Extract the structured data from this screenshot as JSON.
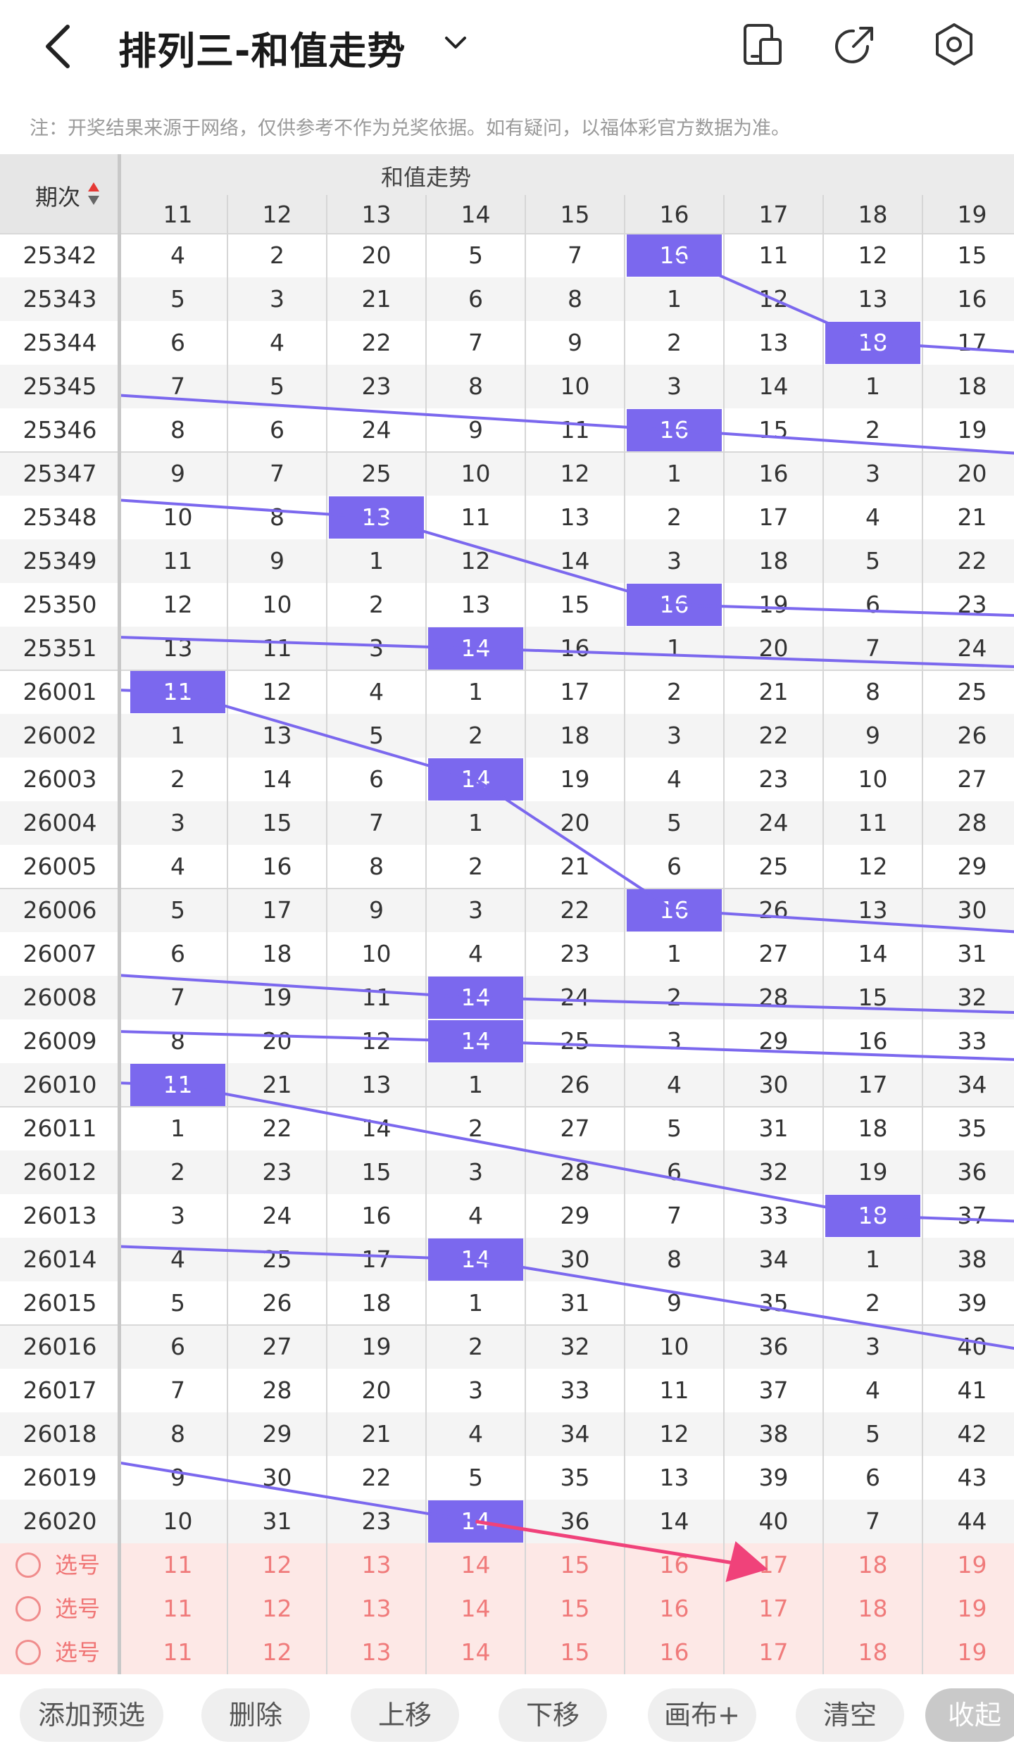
{
  "header": {
    "title": "排列三-和值走势",
    "icons": [
      "back-icon",
      "chevron-down-icon",
      "phone-layout-icon",
      "share-icon",
      "settings-icon"
    ]
  },
  "notice": "注：开奖结果来源于网络，仅供参考不作为兑奖依据。如有疑问，以福体彩官方数据为准。",
  "table": {
    "period_header": "期次",
    "group_header": "和值走势",
    "columns": [
      "11",
      "12",
      "13",
      "14",
      "15",
      "16",
      "17",
      "18",
      "19"
    ],
    "rows": [
      {
        "period": "25342",
        "values": [
          "4",
          "2",
          "20",
          "5",
          "7",
          "16",
          "11",
          "12",
          "15"
        ],
        "hit": 5
      },
      {
        "period": "25343",
        "values": [
          "5",
          "3",
          "21",
          "6",
          "8",
          "1",
          "12",
          "13",
          "16"
        ],
        "hit": -1
      },
      {
        "period": "25344",
        "values": [
          "6",
          "4",
          "22",
          "7",
          "9",
          "2",
          "13",
          "18",
          "17"
        ],
        "hit": 7
      },
      {
        "period": "25345",
        "values": [
          "7",
          "5",
          "23",
          "8",
          "10",
          "3",
          "14",
          "1",
          "18"
        ],
        "hit": -1
      },
      {
        "period": "25346",
        "values": [
          "8",
          "6",
          "24",
          "9",
          "11",
          "16",
          "15",
          "2",
          "19"
        ],
        "hit": 5
      },
      {
        "period": "25347",
        "values": [
          "9",
          "7",
          "25",
          "10",
          "12",
          "1",
          "16",
          "3",
          "20"
        ],
        "hit": -1
      },
      {
        "period": "25348",
        "values": [
          "10",
          "8",
          "13",
          "11",
          "13",
          "2",
          "17",
          "4",
          "21"
        ],
        "hit": 2
      },
      {
        "period": "25349",
        "values": [
          "11",
          "9",
          "1",
          "12",
          "14",
          "3",
          "18",
          "5",
          "22"
        ],
        "hit": -1
      },
      {
        "period": "25350",
        "values": [
          "12",
          "10",
          "2",
          "13",
          "15",
          "16",
          "19",
          "6",
          "23"
        ],
        "hit": 5
      },
      {
        "period": "25351",
        "values": [
          "13",
          "11",
          "3",
          "14",
          "16",
          "1",
          "20",
          "7",
          "24"
        ],
        "hit": 3
      },
      {
        "period": "26001",
        "values": [
          "11",
          "12",
          "4",
          "1",
          "17",
          "2",
          "21",
          "8",
          "25"
        ],
        "hit": 0
      },
      {
        "period": "26002",
        "values": [
          "1",
          "13",
          "5",
          "2",
          "18",
          "3",
          "22",
          "9",
          "26"
        ],
        "hit": -1
      },
      {
        "period": "26003",
        "values": [
          "2",
          "14",
          "6",
          "14",
          "19",
          "4",
          "23",
          "10",
          "27"
        ],
        "hit": 3
      },
      {
        "period": "26004",
        "values": [
          "3",
          "15",
          "7",
          "1",
          "20",
          "5",
          "24",
          "11",
          "28"
        ],
        "hit": -1
      },
      {
        "period": "26005",
        "values": [
          "4",
          "16",
          "8",
          "2",
          "21",
          "6",
          "25",
          "12",
          "29"
        ],
        "hit": -1
      },
      {
        "period": "26006",
        "values": [
          "5",
          "17",
          "9",
          "3",
          "22",
          "16",
          "26",
          "13",
          "30"
        ],
        "hit": 5
      },
      {
        "period": "26007",
        "values": [
          "6",
          "18",
          "10",
          "4",
          "23",
          "1",
          "27",
          "14",
          "31"
        ],
        "hit": -1
      },
      {
        "period": "26008",
        "values": [
          "7",
          "19",
          "11",
          "14",
          "24",
          "2",
          "28",
          "15",
          "32"
        ],
        "hit": 3
      },
      {
        "period": "26009",
        "values": [
          "8",
          "20",
          "12",
          "14",
          "25",
          "3",
          "29",
          "16",
          "33"
        ],
        "hit": 3
      },
      {
        "period": "26010",
        "values": [
          "11",
          "21",
          "13",
          "1",
          "26",
          "4",
          "30",
          "17",
          "34"
        ],
        "hit": 0
      },
      {
        "period": "26011",
        "values": [
          "1",
          "22",
          "14",
          "2",
          "27",
          "5",
          "31",
          "18",
          "35"
        ],
        "hit": -1
      },
      {
        "period": "26012",
        "values": [
          "2",
          "23",
          "15",
          "3",
          "28",
          "6",
          "32",
          "19",
          "36"
        ],
        "hit": -1
      },
      {
        "period": "26013",
        "values": [
          "3",
          "24",
          "16",
          "4",
          "29",
          "7",
          "33",
          "18",
          "37"
        ],
        "hit": 7
      },
      {
        "period": "26014",
        "values": [
          "4",
          "25",
          "17",
          "14",
          "30",
          "8",
          "34",
          "1",
          "38"
        ],
        "hit": 3
      },
      {
        "period": "26015",
        "values": [
          "5",
          "26",
          "18",
          "1",
          "31",
          "9",
          "35",
          "2",
          "39"
        ],
        "hit": -1
      },
      {
        "period": "26016",
        "values": [
          "6",
          "27",
          "19",
          "2",
          "32",
          "10",
          "36",
          "3",
          "40"
        ],
        "hit": -1
      },
      {
        "period": "26017",
        "values": [
          "7",
          "28",
          "20",
          "3",
          "33",
          "11",
          "37",
          "4",
          "41"
        ],
        "hit": -1
      },
      {
        "period": "26018",
        "values": [
          "8",
          "29",
          "21",
          "4",
          "34",
          "12",
          "38",
          "5",
          "42"
        ],
        "hit": -1
      },
      {
        "period": "26019",
        "values": [
          "9",
          "30",
          "22",
          "5",
          "35",
          "13",
          "39",
          "6",
          "43"
        ],
        "hit": -1
      },
      {
        "period": "26020",
        "values": [
          "10",
          "31",
          "23",
          "14",
          "36",
          "14",
          "40",
          "7",
          "44"
        ],
        "hit": 3
      }
    ],
    "picks": [
      {
        "label": "选号",
        "values": [
          "11",
          "12",
          "13",
          "14",
          "15",
          "16",
          "17",
          "18",
          "19"
        ]
      },
      {
        "label": "选号",
        "values": [
          "11",
          "12",
          "13",
          "14",
          "15",
          "16",
          "17",
          "18",
          "19"
        ]
      },
      {
        "label": "选号",
        "values": [
          "11",
          "12",
          "13",
          "14",
          "15",
          "16",
          "17",
          "18",
          "19"
        ]
      }
    ]
  },
  "colors": {
    "hit": "#7b68ee",
    "trend_line": "#7b68ee",
    "arrow": "#f0427a",
    "pick_bg": "#fde8e6",
    "pick_text": "#f07b7b"
  },
  "toolbar": {
    "buttons": [
      "添加预选",
      "删除",
      "上移",
      "下移",
      "画布+",
      "清空",
      "收起"
    ]
  }
}
